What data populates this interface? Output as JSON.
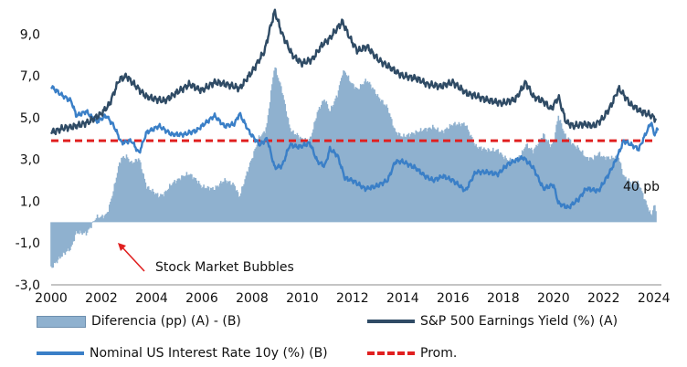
{
  "chart_data": {
    "type": "line",
    "x_ticks": [
      "2000",
      "2002",
      "2004",
      "2006",
      "2008",
      "2010",
      "2012",
      "2014",
      "2016",
      "2018",
      "2020",
      "2022",
      "2024"
    ],
    "y_ticks": [
      "9,0",
      "7,0",
      "5,0",
      "3,0",
      "1,0",
      "-1,0",
      "-3,0"
    ],
    "ylim": [
      -3,
      10.2
    ],
    "xlim": [
      2000,
      2024.3
    ],
    "average": 3.9,
    "annotations": {
      "end_label": "40 pb",
      "bubble_label": "Stock Market  Bubbles"
    },
    "colors": {
      "area": "#8fb1cf",
      "ey": "#2f4b65",
      "rate": "#3a7fc7",
      "avg": "#e02020"
    },
    "series": [
      {
        "name": "S&P 500 Earnings Yield (%) (A)",
        "points": [
          [
            2000.0,
            4.3
          ],
          [
            2000.5,
            4.5
          ],
          [
            2001.0,
            4.6
          ],
          [
            2001.5,
            4.8
          ],
          [
            2002.0,
            5.2
          ],
          [
            2002.3,
            5.6
          ],
          [
            2002.7,
            6.8
          ],
          [
            2003.0,
            7.0
          ],
          [
            2003.3,
            6.6
          ],
          [
            2003.8,
            6.0
          ],
          [
            2004.5,
            5.8
          ],
          [
            2005.0,
            6.2
          ],
          [
            2005.5,
            6.6
          ],
          [
            2006.0,
            6.3
          ],
          [
            2006.5,
            6.7
          ],
          [
            2007.0,
            6.6
          ],
          [
            2007.5,
            6.4
          ],
          [
            2008.0,
            7.2
          ],
          [
            2008.5,
            8.2
          ],
          [
            2008.7,
            9.2
          ],
          [
            2008.9,
            10.1
          ],
          [
            2009.2,
            9.0
          ],
          [
            2009.6,
            8.0
          ],
          [
            2010.0,
            7.6
          ],
          [
            2010.4,
            7.8
          ],
          [
            2010.8,
            8.5
          ],
          [
            2011.1,
            8.8
          ],
          [
            2011.4,
            9.3
          ],
          [
            2011.6,
            9.6
          ],
          [
            2011.9,
            8.8
          ],
          [
            2012.2,
            8.2
          ],
          [
            2012.6,
            8.4
          ],
          [
            2013.0,
            7.8
          ],
          [
            2013.5,
            7.4
          ],
          [
            2014.0,
            7.0
          ],
          [
            2014.5,
            6.9
          ],
          [
            2015.0,
            6.6
          ],
          [
            2015.5,
            6.5
          ],
          [
            2016.0,
            6.7
          ],
          [
            2016.5,
            6.2
          ],
          [
            2017.0,
            6.0
          ],
          [
            2017.5,
            5.8
          ],
          [
            2018.0,
            5.7
          ],
          [
            2018.5,
            5.9
          ],
          [
            2018.9,
            6.7
          ],
          [
            2019.2,
            6.0
          ],
          [
            2019.6,
            5.8
          ],
          [
            2019.9,
            5.4
          ],
          [
            2020.2,
            6.0
          ],
          [
            2020.5,
            4.8
          ],
          [
            2020.8,
            4.6
          ],
          [
            2021.2,
            4.7
          ],
          [
            2021.6,
            4.6
          ],
          [
            2022.0,
            5.0
          ],
          [
            2022.3,
            5.6
          ],
          [
            2022.6,
            6.4
          ],
          [
            2022.8,
            6.1
          ],
          [
            2023.1,
            5.6
          ],
          [
            2023.5,
            5.3
          ],
          [
            2023.9,
            5.1
          ],
          [
            2024.1,
            4.9
          ]
        ]
      },
      {
        "name": "Nominal US Interest Rate 10y (%) (B)",
        "points": [
          [
            2000.0,
            6.5
          ],
          [
            2000.4,
            6.1
          ],
          [
            2000.8,
            5.8
          ],
          [
            2001.0,
            5.1
          ],
          [
            2001.4,
            5.3
          ],
          [
            2001.8,
            4.8
          ],
          [
            2002.2,
            5.1
          ],
          [
            2002.5,
            4.6
          ],
          [
            2002.8,
            3.8
          ],
          [
            2003.2,
            3.9
          ],
          [
            2003.5,
            3.3
          ],
          [
            2003.8,
            4.3
          ],
          [
            2004.3,
            4.6
          ],
          [
            2004.8,
            4.2
          ],
          [
            2005.3,
            4.2
          ],
          [
            2005.8,
            4.4
          ],
          [
            2006.2,
            4.8
          ],
          [
            2006.5,
            5.1
          ],
          [
            2006.9,
            4.6
          ],
          [
            2007.3,
            4.7
          ],
          [
            2007.5,
            5.2
          ],
          [
            2007.9,
            4.3
          ],
          [
            2008.3,
            3.7
          ],
          [
            2008.6,
            4.0
          ],
          [
            2008.9,
            2.6
          ],
          [
            2009.2,
            2.7
          ],
          [
            2009.5,
            3.7
          ],
          [
            2009.9,
            3.6
          ],
          [
            2010.3,
            3.8
          ],
          [
            2010.6,
            2.9
          ],
          [
            2010.9,
            2.7
          ],
          [
            2011.1,
            3.5
          ],
          [
            2011.4,
            3.2
          ],
          [
            2011.7,
            2.1
          ],
          [
            2012.0,
            2.0
          ],
          [
            2012.5,
            1.6
          ],
          [
            2012.9,
            1.7
          ],
          [
            2013.4,
            2.0
          ],
          [
            2013.7,
            2.9
          ],
          [
            2014.0,
            2.9
          ],
          [
            2014.5,
            2.6
          ],
          [
            2014.9,
            2.2
          ],
          [
            2015.2,
            2.0
          ],
          [
            2015.6,
            2.2
          ],
          [
            2016.0,
            2.0
          ],
          [
            2016.5,
            1.5
          ],
          [
            2016.9,
            2.4
          ],
          [
            2017.3,
            2.4
          ],
          [
            2017.8,
            2.3
          ],
          [
            2018.2,
            2.8
          ],
          [
            2018.8,
            3.1
          ],
          [
            2019.2,
            2.6
          ],
          [
            2019.6,
            1.6
          ],
          [
            2020.0,
            1.8
          ],
          [
            2020.2,
            0.9
          ],
          [
            2020.6,
            0.7
          ],
          [
            2021.0,
            1.1
          ],
          [
            2021.3,
            1.6
          ],
          [
            2021.8,
            1.5
          ],
          [
            2022.2,
            2.3
          ],
          [
            2022.5,
            3.0
          ],
          [
            2022.8,
            3.9
          ],
          [
            2023.1,
            3.7
          ],
          [
            2023.4,
            3.5
          ],
          [
            2023.7,
            4.3
          ],
          [
            2023.9,
            4.8
          ],
          [
            2024.0,
            4.2
          ],
          [
            2024.2,
            4.5
          ]
        ]
      },
      {
        "name": "Diferencia (pp) (A) - (B)",
        "derived": "A - B"
      },
      {
        "name": "Prom.",
        "value": 3.9
      }
    ]
  }
}
